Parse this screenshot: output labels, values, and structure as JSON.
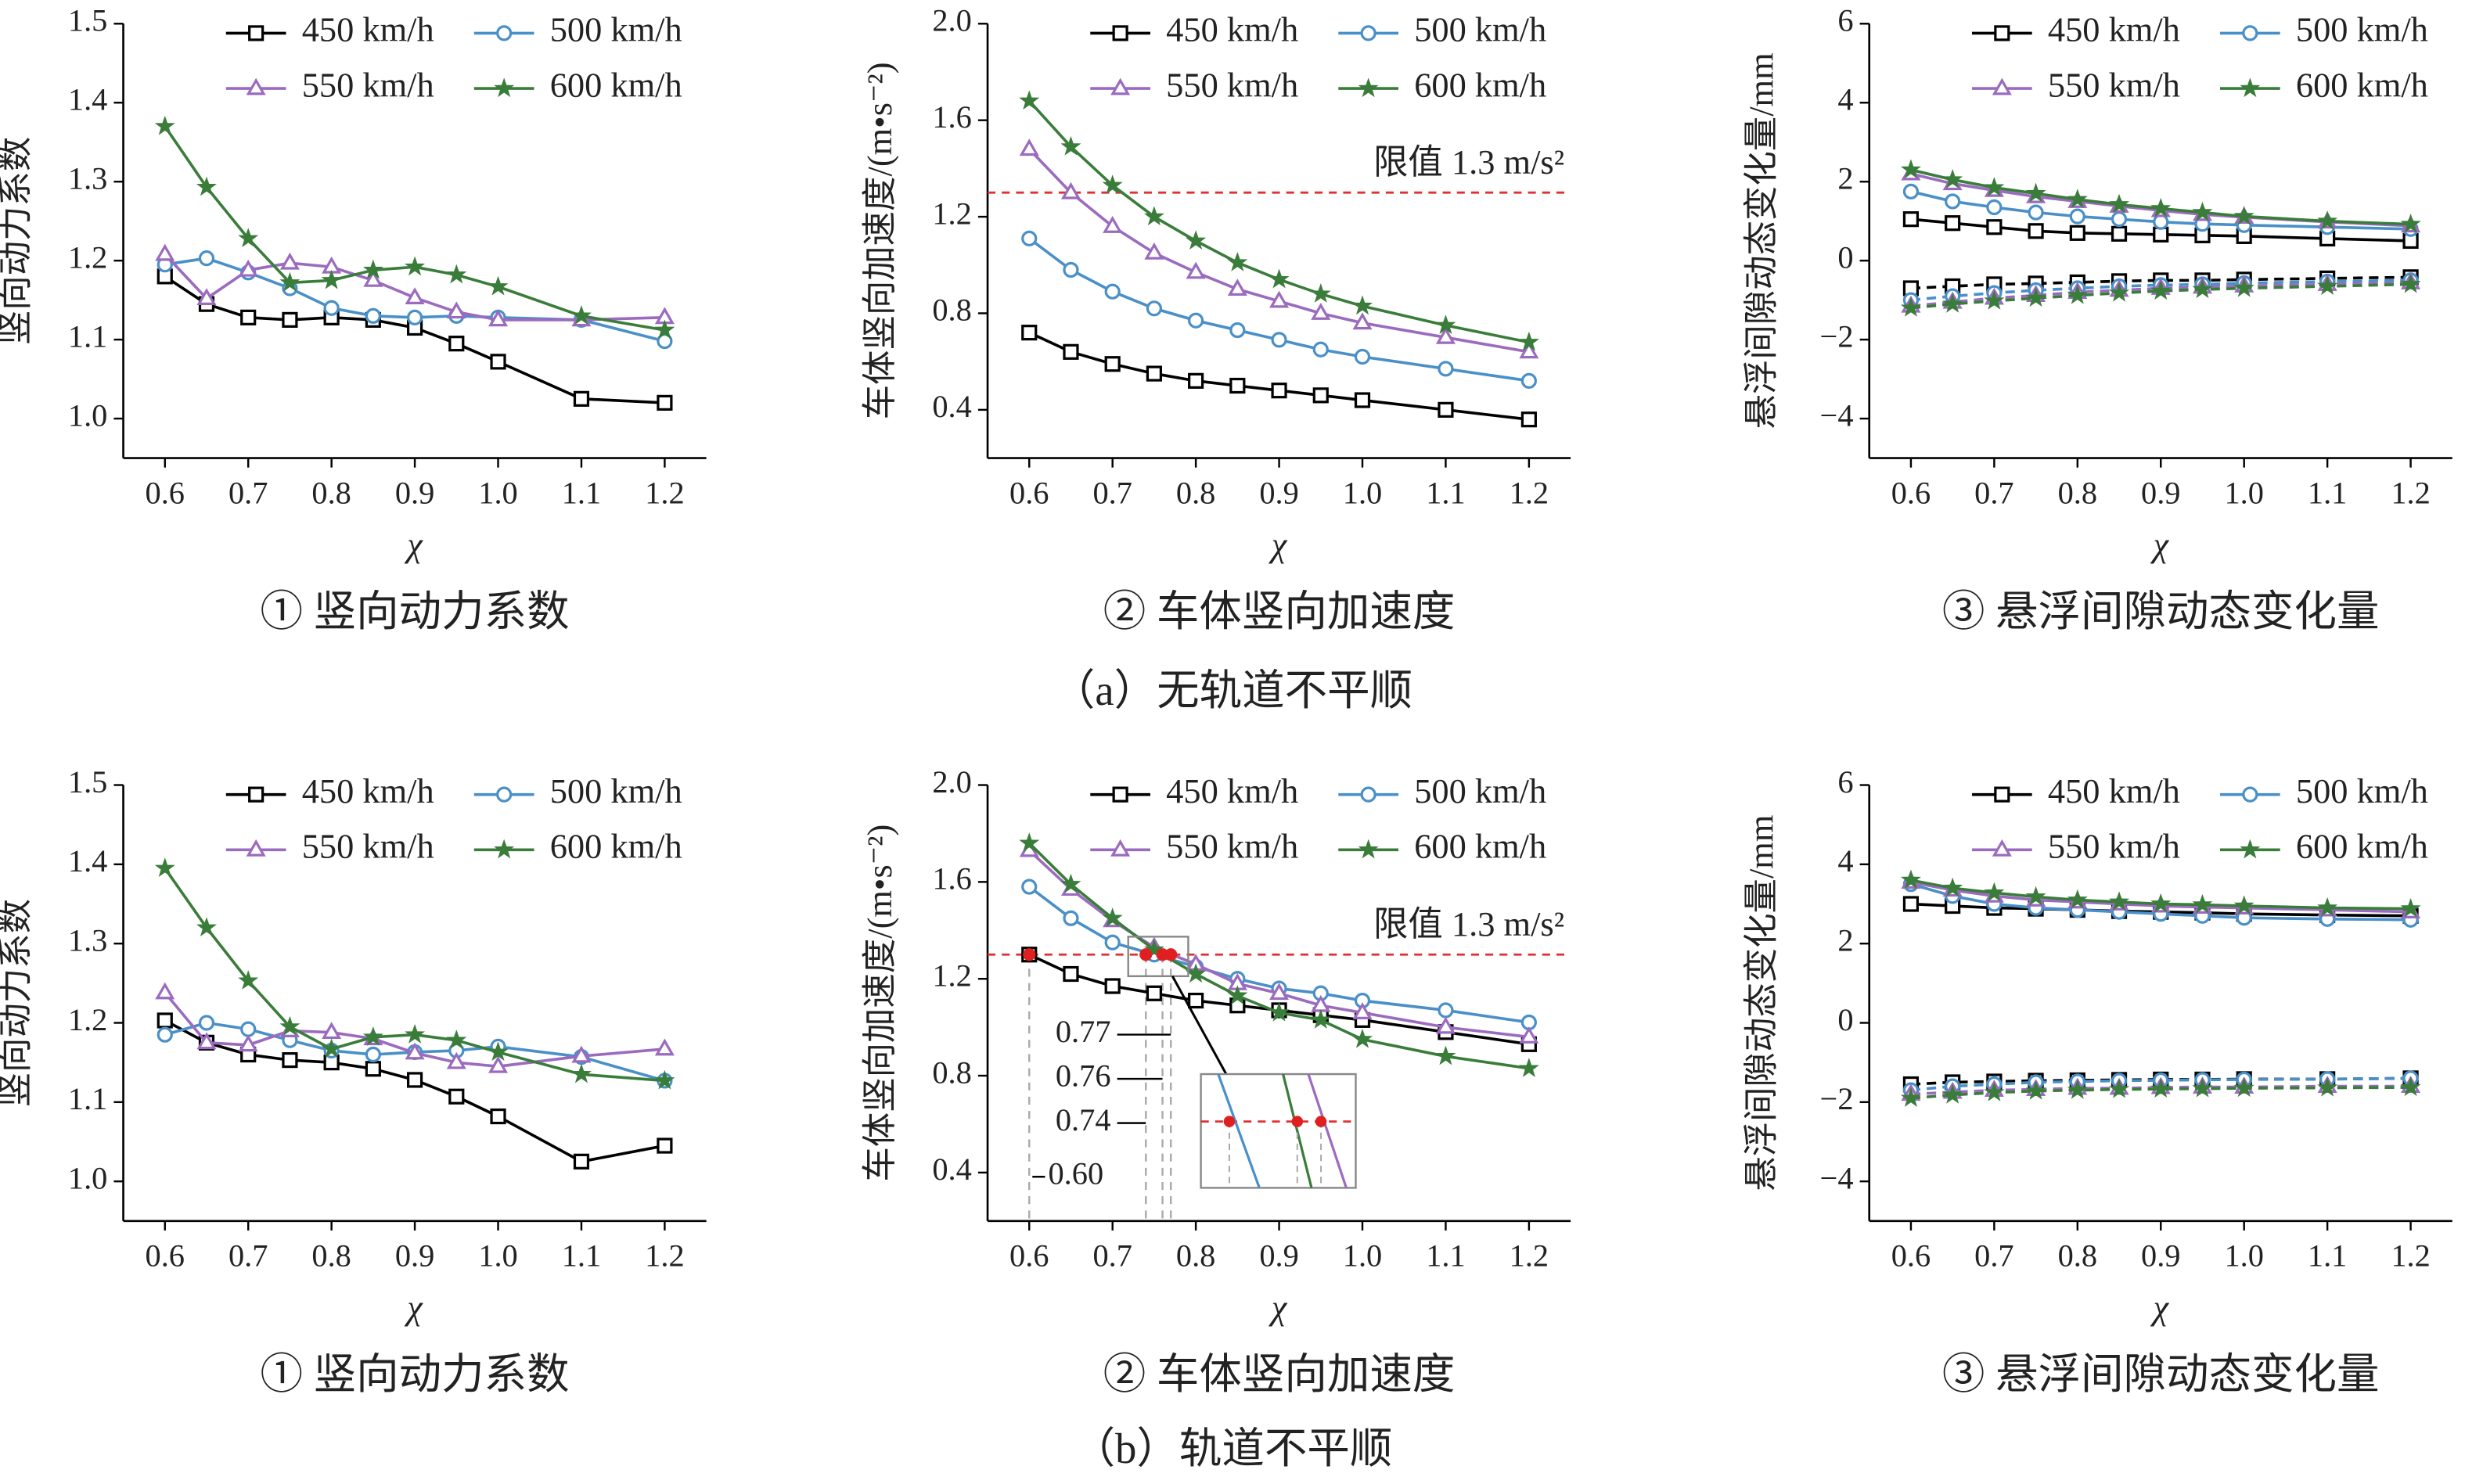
{
  "captions": [
    "（a）无轨道不平顺",
    "（b）轨道不平顺"
  ],
  "chart_data": [
    {
      "type": "line",
      "subtitle": "① 竖向动力系数",
      "xlabel": "χ",
      "ylabel": "竖向动力系数",
      "x": [
        0.6,
        0.65,
        0.7,
        0.75,
        0.8,
        0.85,
        0.9,
        0.95,
        1,
        1.1,
        1.2
      ],
      "xlim": [
        0.55,
        1.25
      ],
      "xticks": [
        0.6,
        0.7,
        0.8,
        0.9,
        {
          "value": 1,
          "label": "1.0"
        },
        1.1,
        1.2
      ],
      "ylim": [
        0.95,
        1.5
      ],
      "yticks": [
        {
          "value": 1,
          "label": "1.0"
        },
        1.1,
        1.2,
        1.3,
        1.4,
        1.5
      ],
      "series": [
        {
          "name": "450 km/h",
          "color": "#000000",
          "marker": "square",
          "values": [
            1.18,
            1.145,
            1.128,
            1.125,
            1.128,
            1.125,
            1.115,
            1.095,
            1.072,
            1.025,
            1.02
          ]
        },
        {
          "name": "500 km/h",
          "color": "#4a90c8",
          "marker": "circle",
          "values": [
            1.195,
            1.203,
            1.185,
            1.165,
            1.14,
            1.13,
            1.128,
            1.13,
            1.128,
            1.125,
            1.098
          ]
        },
        {
          "name": "550 km/h",
          "color": "#9b6bbf",
          "marker": "triangle",
          "values": [
            1.208,
            1.152,
            1.188,
            1.197,
            1.192,
            1.175,
            1.153,
            1.135,
            1.125,
            1.125,
            1.128
          ]
        },
        {
          "name": "600 km/h",
          "color": "#3a7d3a",
          "marker": "star",
          "values": [
            1.37,
            1.293,
            1.228,
            1.172,
            1.175,
            1.188,
            1.192,
            1.182,
            1.167,
            1.13,
            1.112
          ]
        }
      ]
    },
    {
      "type": "line",
      "subtitle": "② 车体竖向加速度",
      "xlabel": "χ",
      "ylabel": "车体竖向加速度/(m•s⁻²)",
      "x": [
        0.6,
        0.65,
        0.7,
        0.75,
        0.8,
        0.85,
        0.9,
        0.95,
        1,
        1.1,
        1.2
      ],
      "xlim": [
        0.55,
        1.25
      ],
      "xticks": [
        0.6,
        0.7,
        0.8,
        0.9,
        {
          "value": 1,
          "label": "1.0"
        },
        1.1,
        1.2
      ],
      "ylim": [
        0.2,
        2.0
      ],
      "yticks": [
        0.4,
        0.8,
        1.2,
        1.6,
        {
          "value": 2,
          "label": "2.0"
        }
      ],
      "annotation": {
        "text": "限值 1.3 m/s²",
        "y": 1.3
      },
      "series": [
        {
          "name": "450 km/h",
          "color": "#000000",
          "marker": "square",
          "values": [
            0.72,
            0.64,
            0.59,
            0.55,
            0.52,
            0.5,
            0.48,
            0.46,
            0.44,
            0.4,
            0.36
          ]
        },
        {
          "name": "500 km/h",
          "color": "#4a90c8",
          "marker": "circle",
          "values": [
            1.11,
            0.98,
            0.89,
            0.82,
            0.77,
            0.73,
            0.69,
            0.65,
            0.62,
            0.57,
            0.52
          ]
        },
        {
          "name": "550 km/h",
          "color": "#9b6bbf",
          "marker": "triangle",
          "values": [
            1.48,
            1.3,
            1.16,
            1.05,
            0.97,
            0.9,
            0.85,
            0.8,
            0.76,
            0.7,
            0.64
          ]
        },
        {
          "name": "600 km/h",
          "color": "#3a7d3a",
          "marker": "star",
          "values": [
            1.68,
            1.49,
            1.33,
            1.2,
            1.1,
            1.01,
            0.94,
            0.88,
            0.83,
            0.75,
            0.68
          ]
        }
      ]
    },
    {
      "type": "line",
      "subtitle": "③ 悬浮间隙动态变化量",
      "xlabel": "χ",
      "ylabel": "悬浮间隙动态变化量/mm",
      "x": [
        0.6,
        0.65,
        0.7,
        0.75,
        0.8,
        0.85,
        0.9,
        0.95,
        1,
        1.1,
        1.2
      ],
      "xlim": [
        0.55,
        1.25
      ],
      "xticks": [
        0.6,
        0.7,
        0.8,
        0.9,
        {
          "value": 1,
          "label": "1.0"
        },
        1.1,
        1.2
      ],
      "ylim": [
        -5,
        6
      ],
      "yticks": [
        {
          "value": -4,
          "label": "−4"
        },
        {
          "value": -2,
          "label": "−2"
        },
        0,
        2,
        4,
        6
      ],
      "series": [
        {
          "name": "450 km/h",
          "color": "#000000",
          "marker": "square",
          "values": [
            1.05,
            0.95,
            0.85,
            0.75,
            0.7,
            0.68,
            0.66,
            0.64,
            0.62,
            0.56,
            0.5
          ],
          "lower_values": [
            -0.7,
            -0.65,
            -0.6,
            -0.58,
            -0.55,
            -0.52,
            -0.5,
            -0.5,
            -0.48,
            -0.45,
            -0.42
          ]
        },
        {
          "name": "500 km/h",
          "color": "#4a90c8",
          "marker": "circle",
          "values": [
            1.75,
            1.5,
            1.35,
            1.22,
            1.12,
            1.05,
            0.98,
            0.93,
            0.9,
            0.85,
            0.8
          ],
          "lower_values": [
            -1.0,
            -0.9,
            -0.82,
            -0.75,
            -0.7,
            -0.65,
            -0.62,
            -0.6,
            -0.57,
            -0.53,
            -0.5
          ]
        },
        {
          "name": "550 km/h",
          "color": "#9b6bbf",
          "marker": "triangle",
          "values": [
            2.2,
            1.95,
            1.78,
            1.62,
            1.5,
            1.38,
            1.27,
            1.17,
            1.1,
            0.98,
            0.88
          ],
          "lower_values": [
            -1.15,
            -1.05,
            -0.95,
            -0.88,
            -0.8,
            -0.75,
            -0.7,
            -0.67,
            -0.64,
            -0.6,
            -0.56
          ]
        },
        {
          "name": "600 km/h",
          "color": "#3a7d3a",
          "marker": "star",
          "values": [
            2.3,
            2.05,
            1.85,
            1.7,
            1.55,
            1.42,
            1.32,
            1.22,
            1.12,
            1.0,
            0.92
          ],
          "lower_values": [
            -1.2,
            -1.1,
            -1.02,
            -0.95,
            -0.88,
            -0.82,
            -0.77,
            -0.73,
            -0.7,
            -0.65,
            -0.6
          ]
        }
      ]
    },
    {
      "type": "line",
      "subtitle": "① 竖向动力系数",
      "xlabel": "χ",
      "ylabel": "竖向动力系数",
      "x": [
        0.6,
        0.65,
        0.7,
        0.75,
        0.8,
        0.85,
        0.9,
        0.95,
        1,
        1.1,
        1.2
      ],
      "xlim": [
        0.55,
        1.25
      ],
      "xticks": [
        0.6,
        0.7,
        0.8,
        0.9,
        {
          "value": 1,
          "label": "1.0"
        },
        1.1,
        1.2
      ],
      "ylim": [
        0.95,
        1.5
      ],
      "yticks": [
        {
          "value": 1,
          "label": "1.0"
        },
        1.1,
        1.2,
        1.3,
        1.4,
        1.5
      ],
      "series": [
        {
          "name": "450 km/h",
          "color": "#000000",
          "marker": "square",
          "values": [
            1.203,
            1.175,
            1.16,
            1.153,
            1.15,
            1.142,
            1.128,
            1.107,
            1.082,
            1.025,
            1.045
          ]
        },
        {
          "name": "500 km/h",
          "color": "#4a90c8",
          "marker": "circle",
          "values": [
            1.185,
            1.2,
            1.192,
            1.178,
            1.165,
            1.16,
            1.163,
            1.165,
            1.17,
            1.157,
            1.127
          ]
        },
        {
          "name": "550 km/h",
          "color": "#9b6bbf",
          "marker": "triangle",
          "values": [
            1.238,
            1.175,
            1.172,
            1.19,
            1.188,
            1.18,
            1.162,
            1.15,
            1.145,
            1.158,
            1.167
          ]
        },
        {
          "name": "600 km/h",
          "color": "#3a7d3a",
          "marker": "star",
          "values": [
            1.395,
            1.32,
            1.253,
            1.195,
            1.167,
            1.182,
            1.185,
            1.178,
            1.163,
            1.135,
            1.127
          ]
        }
      ]
    },
    {
      "type": "line",
      "subtitle": "② 车体竖向加速度",
      "xlabel": "χ",
      "ylabel": "车体竖向加速度/(m•s⁻²)",
      "x": [
        0.6,
        0.65,
        0.7,
        0.75,
        0.8,
        0.85,
        0.9,
        0.95,
        1,
        1.1,
        1.2
      ],
      "xlim": [
        0.55,
        1.25
      ],
      "xticks": [
        0.6,
        0.7,
        0.8,
        0.9,
        {
          "value": 1,
          "label": "1.0"
        },
        1.1,
        1.2
      ],
      "ylim": [
        0.2,
        2.0
      ],
      "yticks": [
        0.4,
        0.8,
        1.2,
        1.6,
        {
          "value": 2,
          "label": "2.0"
        }
      ],
      "annotation": {
        "text": "限值 1.3 m/s²",
        "y": 1.3
      },
      "crossings": [
        0.77,
        0.76,
        0.74,
        {
          "value": 0.6,
          "label": "0.60"
        }
      ],
      "series": [
        {
          "name": "450 km/h",
          "color": "#000000",
          "marker": "square",
          "values": [
            1.3,
            1.22,
            1.17,
            1.14,
            1.11,
            1.09,
            1.07,
            1.05,
            1.03,
            0.98,
            0.93
          ]
        },
        {
          "name": "500 km/h",
          "color": "#4a90c8",
          "marker": "circle",
          "values": [
            1.58,
            1.45,
            1.35,
            1.3,
            1.25,
            1.2,
            1.16,
            1.14,
            1.11,
            1.07,
            1.02
          ]
        },
        {
          "name": "550 km/h",
          "color": "#9b6bbf",
          "marker": "triangle",
          "values": [
            1.73,
            1.57,
            1.44,
            1.33,
            1.26,
            1.18,
            1.14,
            1.09,
            1.06,
            1.0,
            0.96
          ]
        },
        {
          "name": "600 km/h",
          "color": "#3a7d3a",
          "marker": "star",
          "values": [
            1.76,
            1.59,
            1.45,
            1.32,
            1.22,
            1.13,
            1.06,
            1.03,
            0.95,
            0.88,
            0.83
          ]
        }
      ]
    },
    {
      "type": "line",
      "subtitle": "③ 悬浮间隙动态变化量",
      "xlabel": "χ",
      "ylabel": "悬浮间隙动态变化量/mm",
      "x": [
        0.6,
        0.65,
        0.7,
        0.75,
        0.8,
        0.85,
        0.9,
        0.95,
        1,
        1.1,
        1.2
      ],
      "xlim": [
        0.55,
        1.25
      ],
      "xticks": [
        0.6,
        0.7,
        0.8,
        0.9,
        {
          "value": 1,
          "label": "1.0"
        },
        1.1,
        1.2
      ],
      "ylim": [
        -5,
        6
      ],
      "yticks": [
        {
          "value": -4,
          "label": "−4"
        },
        {
          "value": -2,
          "label": "−2"
        },
        0,
        2,
        4,
        6
      ],
      "series": [
        {
          "name": "450 km/h",
          "color": "#000000",
          "marker": "square",
          "values": [
            3.0,
            2.95,
            2.9,
            2.88,
            2.85,
            2.82,
            2.8,
            2.78,
            2.75,
            2.72,
            2.7
          ],
          "lower_values": [
            -1.55,
            -1.5,
            -1.48,
            -1.46,
            -1.45,
            -1.44,
            -1.43,
            -1.43,
            -1.42,
            -1.42,
            -1.4
          ]
        },
        {
          "name": "500 km/h",
          "color": "#4a90c8",
          "marker": "circle",
          "values": [
            3.5,
            3.2,
            3.0,
            2.9,
            2.85,
            2.8,
            2.75,
            2.7,
            2.65,
            2.62,
            2.6
          ],
          "lower_values": [
            -1.7,
            -1.6,
            -1.55,
            -1.5,
            -1.48,
            -1.46,
            -1.45,
            -1.44,
            -1.43,
            -1.42,
            -1.4
          ]
        },
        {
          "name": "550 km/h",
          "color": "#9b6bbf",
          "marker": "triangle",
          "values": [
            3.55,
            3.35,
            3.2,
            3.1,
            3.05,
            3.0,
            2.95,
            2.92,
            2.9,
            2.85,
            2.8
          ],
          "lower_values": [
            -1.8,
            -1.75,
            -1.7,
            -1.68,
            -1.65,
            -1.65,
            -1.63,
            -1.62,
            -1.62,
            -1.6,
            -1.6
          ]
        },
        {
          "name": "600 km/h",
          "color": "#3a7d3a",
          "marker": "star",
          "values": [
            3.6,
            3.4,
            3.28,
            3.18,
            3.1,
            3.05,
            3.0,
            2.98,
            2.95,
            2.9,
            2.88
          ],
          "lower_values": [
            -1.9,
            -1.82,
            -1.76,
            -1.72,
            -1.7,
            -1.68,
            -1.67,
            -1.66,
            -1.65,
            -1.64,
            -1.63
          ]
        }
      ]
    }
  ]
}
